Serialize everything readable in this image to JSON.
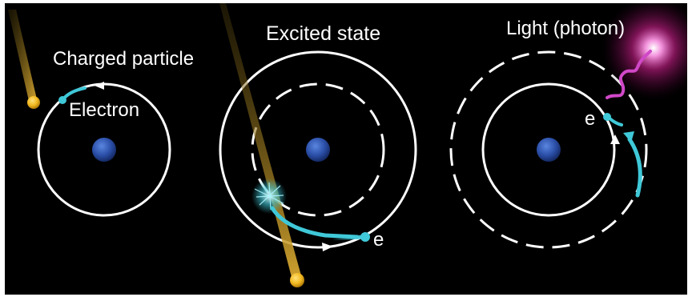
{
  "panels": {
    "ground": {
      "title": "Charged particle",
      "electron_label": "Electron"
    },
    "excited": {
      "title": "Excited state",
      "electron_label": "e"
    },
    "emission": {
      "title": "Light (photon)",
      "electron_label": "e"
    }
  },
  "colors": {
    "background": "#000000",
    "orbit": "#ffffff",
    "nucleus": "#2b4fa8",
    "electron": "#3fc8d8",
    "particle": "#f2b820",
    "particle_trail": "#b8901e",
    "photon": "#e040c0"
  }
}
